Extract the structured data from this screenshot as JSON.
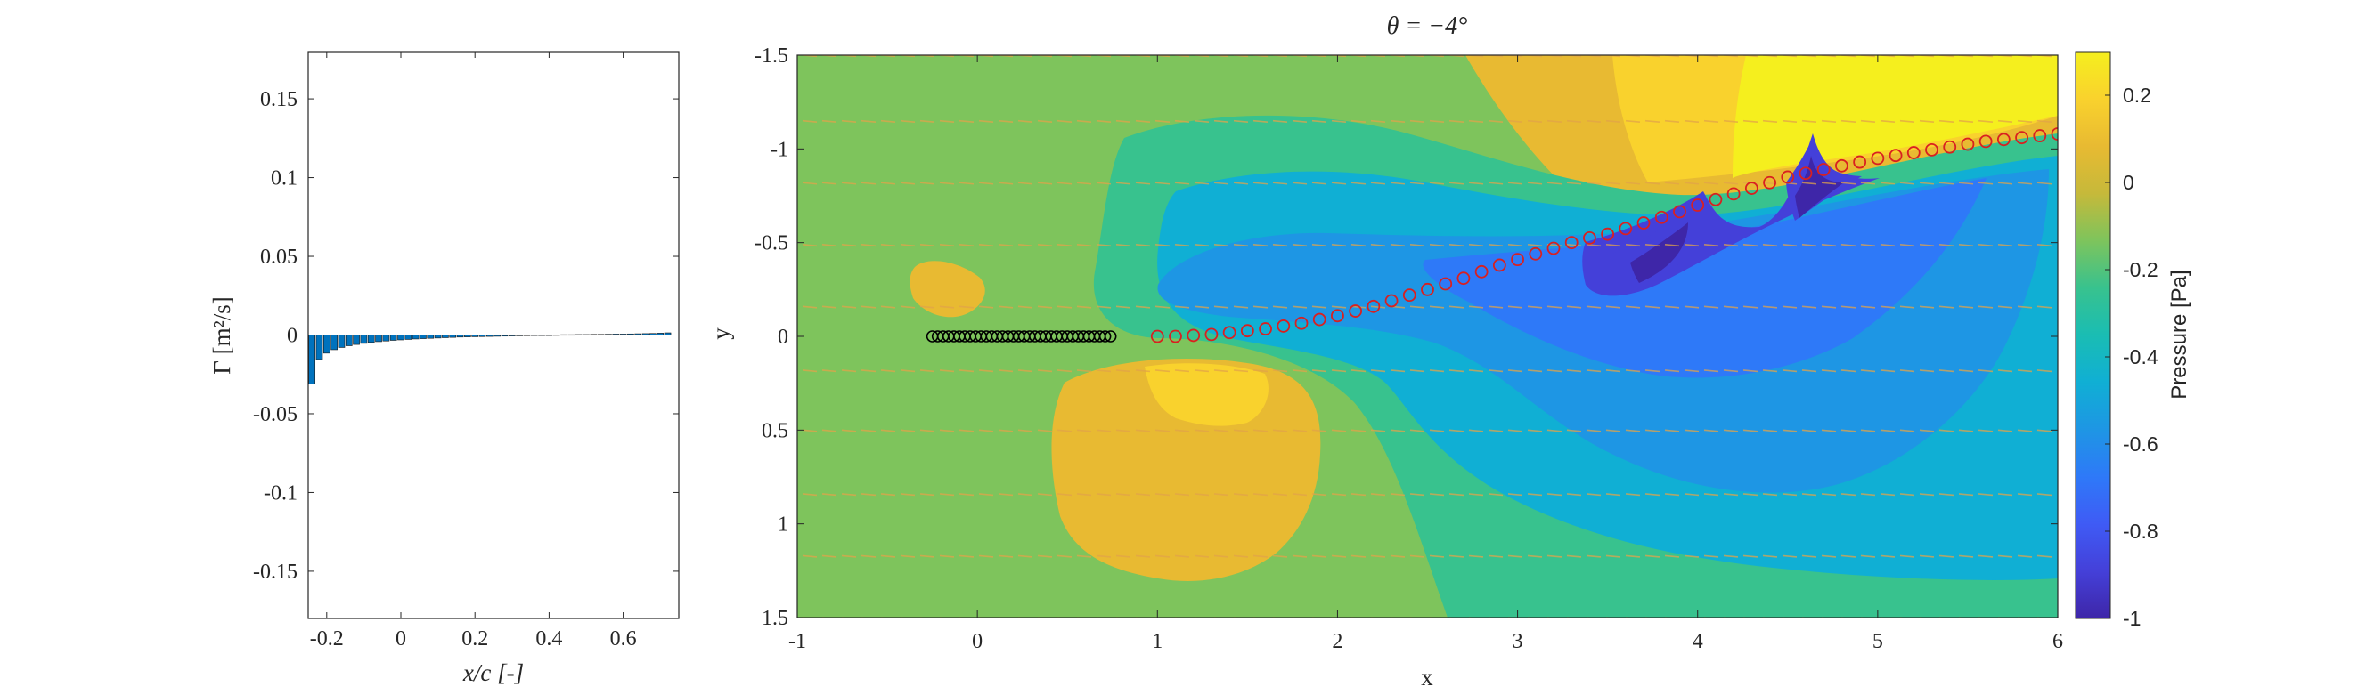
{
  "chart_data": [
    {
      "type": "bar",
      "xlabel": "x/c [-]",
      "ylabel": "Γ [m²/s]",
      "xlim": [
        -0.25,
        0.75
      ],
      "ylim": [
        -0.18,
        0.18
      ],
      "xticks": [
        "-0.2",
        "0",
        "0.2",
        "0.4",
        "0.6"
      ],
      "xtick_values": [
        -0.2,
        0,
        0.2,
        0.4,
        0.6
      ],
      "yticks": [
        "0.15",
        "0.1",
        "0.05",
        "0",
        "-0.05",
        "-0.1",
        "-0.15"
      ],
      "ytick_values": [
        0.15,
        0.1,
        0.05,
        0,
        -0.05,
        -0.1,
        -0.15
      ],
      "bar_color": "#0072BD",
      "x": [
        -0.24,
        -0.22,
        -0.2,
        -0.18,
        -0.16,
        -0.14,
        -0.12,
        -0.1,
        -0.08,
        -0.06,
        -0.04,
        -0.02,
        0.0,
        0.02,
        0.04,
        0.06,
        0.08,
        0.1,
        0.12,
        0.14,
        0.16,
        0.18,
        0.2,
        0.22,
        0.24,
        0.26,
        0.28,
        0.3,
        0.32,
        0.34,
        0.36,
        0.38,
        0.4,
        0.42,
        0.44,
        0.46,
        0.48,
        0.5,
        0.52,
        0.54,
        0.56,
        0.58,
        0.6,
        0.62,
        0.64,
        0.66,
        0.68,
        0.7,
        0.72
      ],
      "values": [
        -0.031,
        -0.0155,
        -0.0115,
        -0.0093,
        -0.0079,
        -0.0068,
        -0.006,
        -0.0053,
        -0.0047,
        -0.0042,
        -0.0038,
        -0.0034,
        -0.0031,
        -0.0028,
        -0.0025,
        -0.0023,
        -0.0021,
        -0.0019,
        -0.0017,
        -0.0015,
        -0.0013,
        -0.0012,
        -0.0011,
        -0.001,
        -0.0009,
        -0.0008,
        -0.0007,
        -0.0006,
        -0.0005,
        -0.0004,
        -0.0003,
        -0.0002,
        -0.0001,
        0.0001,
        0.0002,
        0.0002,
        0.0003,
        0.0003,
        0.0004,
        0.0004,
        0.0005,
        0.0006,
        0.0006,
        0.0007,
        0.0008,
        0.0009,
        0.001,
        0.0012,
        0.0014
      ]
    },
    {
      "type": "heatmap",
      "title": "θ = −4°",
      "xlabel": "x",
      "ylabel": "y",
      "xlim": [
        -1,
        6
      ],
      "ylim": [
        -1.5,
        1.5
      ],
      "y_reversed": true,
      "xticks": [
        "-1",
        "0",
        "1",
        "2",
        "3",
        "4",
        "5",
        "6"
      ],
      "xtick_values": [
        -1,
        0,
        1,
        2,
        3,
        4,
        5,
        6
      ],
      "yticks": [
        "-1.5",
        "-1",
        "-0.5",
        "0",
        "0.5",
        "1",
        "1.5"
      ],
      "ytick_values": [
        -1.5,
        -1,
        -0.5,
        0,
        0.5,
        1,
        1.5
      ],
      "colorbar": {
        "label": "Pressure [Pa]",
        "range": [
          -1,
          0.3
        ],
        "ticks": [
          "0.2",
          "0",
          "-0.2",
          "-0.4",
          "-0.6",
          "-0.8",
          "-1"
        ],
        "tick_values": [
          0.2,
          0,
          -0.2,
          -0.4,
          -0.6,
          -0.8,
          -1
        ],
        "colormap": "parula",
        "colors": [
          "#3E26A8",
          "#4440D9",
          "#3F5BF5",
          "#2E79F8",
          "#1E96E4",
          "#10AFD4",
          "#1ABDB3",
          "#38C28E",
          "#7EC45C",
          "#C6B93A",
          "#E8BA32",
          "#F9D22D",
          "#F5EF1E"
        ]
      },
      "contour_regions": [
        {
          "level": -0.2,
          "color": "#38C28E"
        },
        {
          "level": -0.35,
          "color": "#10AFD4"
        },
        {
          "level": -0.5,
          "color": "#1E96E4"
        },
        {
          "level": -0.65,
          "color": "#2E79F8"
        },
        {
          "level": -0.8,
          "color": "#4440D9"
        },
        {
          "level": -0.95,
          "color": "#3E26A8"
        },
        {
          "level": 0.05,
          "color": "#E8BA32"
        },
        {
          "level": 0.15,
          "color": "#F9D22D"
        },
        {
          "level": 0.28,
          "color": "#F5EF1E"
        }
      ],
      "background_level": -0.1,
      "background_color": "#7EC45C",
      "velocity_rows_y": [
        -1.5,
        -1.15,
        -0.82,
        -0.49,
        -0.16,
        0.18,
        0.5,
        0.84,
        1.17,
        1.5
      ],
      "vector_color": "#E2A34A",
      "airfoil_points": {
        "x": [
          -0.25,
          -0.22,
          -0.19,
          -0.16,
          -0.13,
          -0.1,
          -0.07,
          -0.04,
          -0.01,
          0.02,
          0.05,
          0.08,
          0.11,
          0.14,
          0.17,
          0.2,
          0.23,
          0.26,
          0.29,
          0.32,
          0.35,
          0.38,
          0.41,
          0.44,
          0.47,
          0.5,
          0.53,
          0.56,
          0.59,
          0.62,
          0.65,
          0.68,
          0.71,
          0.74
        ],
        "color": "#000000"
      },
      "wake_points": {
        "x": [
          1.0,
          1.1,
          1.2,
          1.3,
          1.4,
          1.5,
          1.6,
          1.7,
          1.8,
          1.9,
          2.0,
          2.1,
          2.2,
          2.3,
          2.4,
          2.5,
          2.6,
          2.7,
          2.8,
          2.9,
          3.0,
          3.1,
          3.2,
          3.3,
          3.4,
          3.5,
          3.6,
          3.7,
          3.8,
          3.9,
          4.0,
          4.1,
          4.2,
          4.3,
          4.4,
          4.5,
          4.6,
          4.7,
          4.8,
          4.9,
          5.0,
          5.1,
          5.2,
          5.3,
          5.4,
          5.5,
          5.6,
          5.7,
          5.8,
          5.9,
          6.0
        ],
        "y": [
          0.0,
          0.0,
          -0.005,
          -0.01,
          -0.02,
          -0.03,
          -0.04,
          -0.055,
          -0.07,
          -0.09,
          -0.11,
          -0.135,
          -0.16,
          -0.19,
          -0.22,
          -0.25,
          -0.28,
          -0.31,
          -0.345,
          -0.38,
          -0.41,
          -0.44,
          -0.47,
          -0.5,
          -0.525,
          -0.545,
          -0.575,
          -0.605,
          -0.635,
          -0.665,
          -0.7,
          -0.73,
          -0.76,
          -0.79,
          -0.82,
          -0.85,
          -0.87,
          -0.89,
          -0.91,
          -0.93,
          -0.95,
          -0.965,
          -0.98,
          -0.995,
          -1.01,
          -1.025,
          -1.04,
          -1.05,
          -1.06,
          -1.07,
          -1.08
        ],
        "color": "#D92020"
      }
    }
  ]
}
